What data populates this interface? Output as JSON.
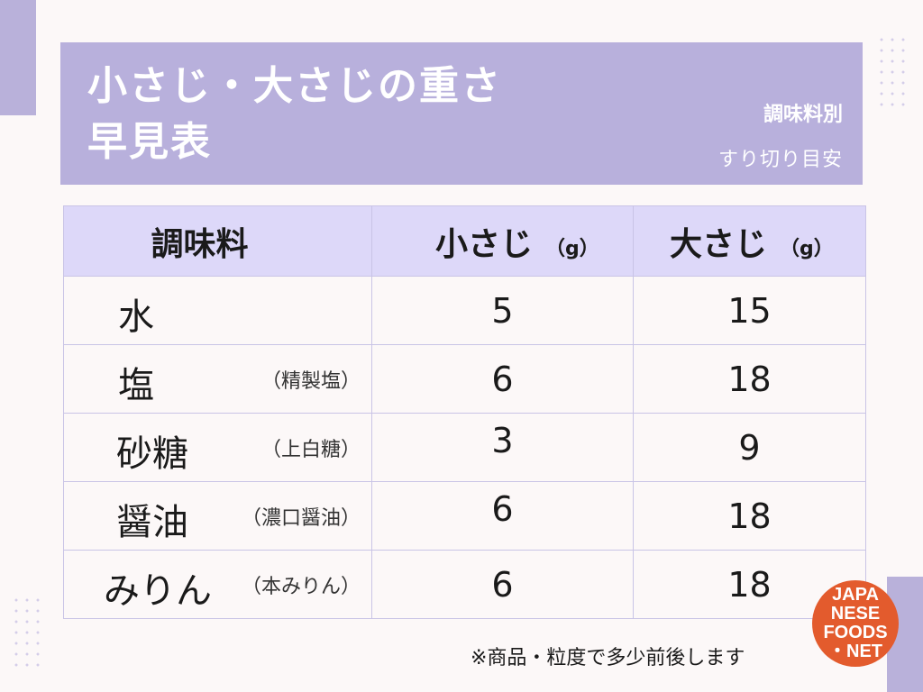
{
  "header": {
    "title_line1": "小さじ・大さじの重さ",
    "title_line2": "早見表",
    "subtitle1": "調味料別",
    "subtitle2": "すり切り目安"
  },
  "table": {
    "headers": {
      "name": "調味料",
      "small": "小さじ",
      "small_unit": "（g）",
      "large": "大さじ",
      "large_unit": "（g）"
    },
    "rows": [
      {
        "name": "水",
        "note": "",
        "small": "5",
        "large": "15"
      },
      {
        "name": "塩",
        "note": "（精製塩）",
        "small": "6",
        "large": "18"
      },
      {
        "name": "砂糖",
        "note": "（上白糖）",
        "small": "3",
        "large": "9"
      },
      {
        "name": "醤油",
        "note": "（濃口醤油）",
        "small": "6",
        "large": "18"
      },
      {
        "name": "みりん",
        "note": "（本みりん）",
        "small": "6",
        "large": "18"
      }
    ]
  },
  "footnote": "※商品・粒度で多少前後します",
  "logo": {
    "lines": [
      "JAPA",
      "NESE",
      "FOODS",
      "・NET"
    ]
  },
  "colors": {
    "header_bg": "#b8b0dc",
    "table_head_bg": "#ddd8f9",
    "border": "#c9c4e6",
    "logo": "#e35b2d"
  }
}
